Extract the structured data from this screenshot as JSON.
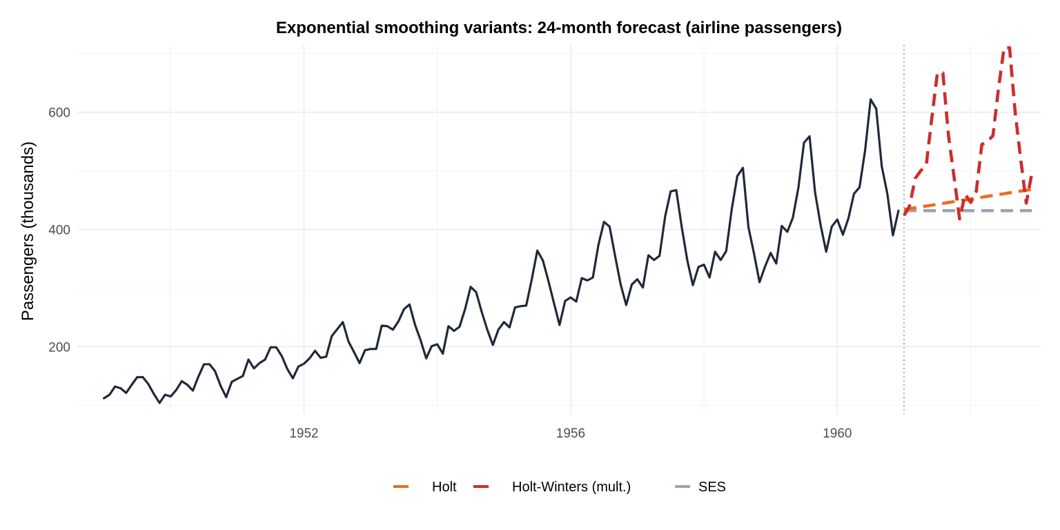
{
  "chart_data": {
    "type": "line",
    "title": "Exponential smoothing variants: 24-month forecast (airline passengers)",
    "xlabel": "",
    "ylabel": "Passengers (thousands)",
    "xlim": [
      1948.6,
      1963.05
    ],
    "ylim": [
      85,
      715
    ],
    "x_ticks": [
      1952,
      1956,
      1960
    ],
    "y_ticks": [
      200,
      400,
      600
    ],
    "grid": true,
    "forecast_origin": 1961.0,
    "legend_position": "bottom",
    "colors": {
      "observed": "#1e2a3b",
      "holt": "#f26a1b",
      "holt_winters": "#d62828",
      "ses": "#9aa4b2",
      "grid_major": "#ebebeb",
      "grid_minor": "#f4f4f4",
      "vline": "#999999"
    },
    "observed": {
      "start": 1949.0,
      "step": 0.08333333,
      "values": [
        112,
        118,
        132,
        129,
        121,
        135,
        148,
        148,
        136,
        119,
        104,
        118,
        115,
        126,
        141,
        135,
        125,
        149,
        170,
        170,
        158,
        133,
        114,
        140,
        145,
        150,
        178,
        163,
        172,
        178,
        199,
        199,
        184,
        162,
        146,
        166,
        171,
        180,
        193,
        181,
        183,
        218,
        230,
        242,
        209,
        191,
        172,
        194,
        196,
        196,
        236,
        235,
        229,
        243,
        264,
        272,
        237,
        211,
        180,
        201,
        204,
        188,
        235,
        227,
        234,
        264,
        302,
        293,
        259,
        229,
        203,
        229,
        242,
        233,
        267,
        269,
        270,
        315,
        364,
        347,
        312,
        274,
        237,
        278,
        284,
        277,
        317,
        313,
        318,
        374,
        413,
        405,
        355,
        306,
        271,
        306,
        315,
        301,
        356,
        348,
        355,
        422,
        465,
        467,
        404,
        347,
        305,
        336,
        340,
        318,
        362,
        348,
        363,
        435,
        491,
        505,
        404,
        359,
        310,
        337,
        360,
        342,
        406,
        396,
        420,
        472,
        548,
        559,
        463,
        407,
        362,
        405,
        417,
        391,
        419,
        461,
        472,
        535,
        622,
        606,
        508,
        461,
        390,
        432
      ]
    },
    "series": [
      {
        "name": "Holt",
        "key": "holt",
        "start": 1961.0,
        "step": 0.08333333,
        "values": [
          434,
          435.5,
          437,
          438.5,
          440,
          441.5,
          443,
          444.5,
          446,
          447.5,
          449,
          450.5,
          452,
          453.5,
          455,
          456.5,
          458,
          459.5,
          461,
          462.5,
          464,
          465.5,
          467,
          468.5
        ]
      },
      {
        "name": "Holt-Winters (mult.)",
        "key": "holt_winters",
        "start": 1961.0,
        "step": 0.08333333,
        "values": [
          424,
          440,
          487,
          500,
          510,
          590,
          667,
          667,
          560,
          490,
          418,
          460,
          446,
          465,
          545,
          550,
          560,
          640,
          710,
          710,
          600,
          520,
          445,
          495
        ]
      },
      {
        "name": "SES",
        "key": "ses",
        "start": 1961.0,
        "step": 0.08333333,
        "values": [
          432,
          432,
          432,
          432,
          432,
          432,
          432,
          432,
          432,
          432,
          432,
          432,
          432,
          432,
          432,
          432,
          432,
          432,
          432,
          432,
          432,
          432,
          432,
          432
        ]
      }
    ]
  }
}
